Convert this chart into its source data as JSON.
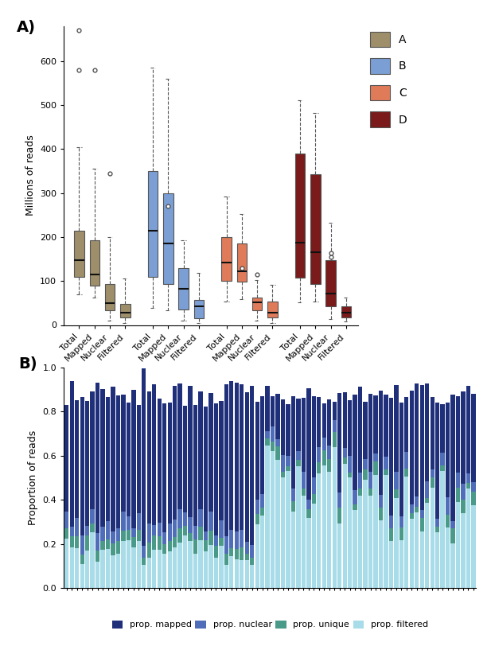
{
  "panel_A": {
    "ylabel": "Millions of reads",
    "ylim": [
      0,
      680
    ],
    "yticks": [
      0,
      100,
      200,
      300,
      400,
      500,
      600
    ],
    "groups": [
      "A",
      "B",
      "C",
      "D"
    ],
    "categories": [
      "Total",
      "Mapped",
      "Nuclear",
      "Filtered"
    ],
    "colors": {
      "A": "#9e8f6a",
      "B": "#7b9fd4",
      "C": "#e07b5a",
      "D": "#7a1a1a"
    },
    "box_data": {
      "A": {
        "Total": {
          "q1": 110,
          "median": 148,
          "q3": 215,
          "whislo": 70,
          "whishi": 405,
          "fliers": [
            580,
            670
          ]
        },
        "Mapped": {
          "q1": 90,
          "median": 115,
          "q3": 193,
          "whislo": 63,
          "whishi": 355,
          "fliers": [
            580
          ]
        },
        "Nuclear": {
          "q1": 33,
          "median": 50,
          "q3": 93,
          "whislo": 10,
          "whishi": 200,
          "fliers": [
            345
          ]
        },
        "Filtered": {
          "q1": 18,
          "median": 28,
          "q3": 48,
          "whislo": 4,
          "whishi": 105,
          "fliers": []
        }
      },
      "B": {
        "Total": {
          "q1": 110,
          "median": 215,
          "q3": 350,
          "whislo": 38,
          "whishi": 585,
          "fliers": []
        },
        "Mapped": {
          "q1": 93,
          "median": 185,
          "q3": 300,
          "whislo": 33,
          "whishi": 560,
          "fliers": [
            270
          ]
        },
        "Nuclear": {
          "q1": 35,
          "median": 82,
          "q3": 130,
          "whislo": 10,
          "whishi": 192,
          "fliers": []
        },
        "Filtered": {
          "q1": 15,
          "median": 42,
          "q3": 57,
          "whislo": 5,
          "whishi": 118,
          "fliers": []
        }
      },
      "C": {
        "Total": {
          "q1": 100,
          "median": 142,
          "q3": 200,
          "whislo": 53,
          "whishi": 293,
          "fliers": []
        },
        "Mapped": {
          "q1": 98,
          "median": 122,
          "q3": 185,
          "whislo": 58,
          "whishi": 252,
          "fliers": [
            130
          ]
        },
        "Nuclear": {
          "q1": 33,
          "median": 52,
          "q3": 62,
          "whislo": 10,
          "whishi": 102,
          "fliers": [
            115
          ]
        },
        "Filtered": {
          "q1": 18,
          "median": 28,
          "q3": 53,
          "whislo": 4,
          "whishi": 92,
          "fliers": []
        }
      },
      "D": {
        "Total": {
          "q1": 108,
          "median": 188,
          "q3": 390,
          "whislo": 52,
          "whishi": 512,
          "fliers": []
        },
        "Mapped": {
          "q1": 93,
          "median": 165,
          "q3": 342,
          "whislo": 53,
          "whishi": 482,
          "fliers": []
        },
        "Nuclear": {
          "q1": 43,
          "median": 72,
          "q3": 148,
          "whislo": 13,
          "whishi": 232,
          "fliers": [
            155,
            163
          ]
        },
        "Filtered": {
          "q1": 18,
          "median": 28,
          "q3": 42,
          "whislo": 8,
          "whishi": 62,
          "fliers": []
        }
      }
    }
  },
  "panel_B": {
    "ylabel": "Proportion of reads",
    "ylim": [
      0,
      1.0
    ],
    "yticks": [
      0.0,
      0.2,
      0.4,
      0.6,
      0.8,
      1.0
    ],
    "colors": {
      "prop_mapped": "#1f2f7a",
      "prop_nuclear": "#4f6db8",
      "prop_unique": "#4a9a8a",
      "prop_filtered": "#a8dce8"
    },
    "legend_labels": [
      "prop. mapped",
      "prop. nuclear",
      "prop. unique",
      "prop. filtered"
    ],
    "n_bars": 80
  }
}
